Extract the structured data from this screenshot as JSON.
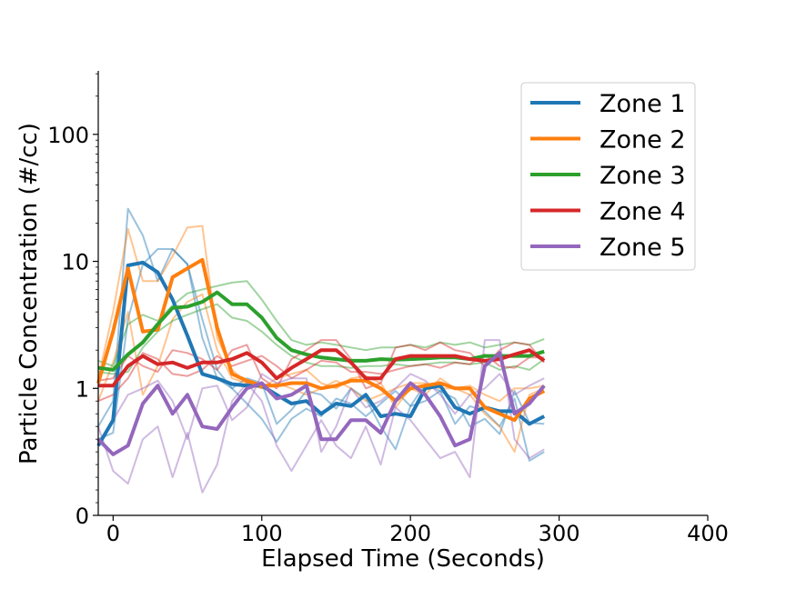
{
  "chart_data": {
    "type": "line",
    "xlabel": "Elapsed Time (Seconds)",
    "ylabel": "Particle Concentration (#/cc)",
    "y_scale": "symlog",
    "xlim": [
      -10,
      400
    ],
    "ylim": [
      0,
      316
    ],
    "x_ticks": [
      0,
      100,
      200,
      300,
      400
    ],
    "x_tick_labels": [
      "0",
      "100",
      "200",
      "300",
      "400"
    ],
    "y_ticks": [
      0,
      1,
      10,
      100
    ],
    "y_tick_labels": [
      "0",
      "1",
      "10",
      "100"
    ],
    "grid": false,
    "legend_position": "top-right",
    "x": [
      -10,
      0,
      10,
      20,
      30,
      40,
      50,
      60,
      70,
      80,
      90,
      100,
      110,
      120,
      130,
      140,
      150,
      160,
      170,
      180,
      190,
      200,
      210,
      220,
      230,
      240,
      250,
      260,
      270,
      280,
      290
    ],
    "series": [
      {
        "name": "Zone 1",
        "color": "#1f77b4",
        "values": [
          0.55,
          0.75,
          9.3,
          9.8,
          8.2,
          5.0,
          2.6,
          1.3,
          1.2,
          1.08,
          1.05,
          1.05,
          0.95,
          0.88,
          0.9,
          0.8,
          0.88,
          0.86,
          0.95,
          0.78,
          0.8,
          0.78,
          1.0,
          1.05,
          0.85,
          0.8,
          0.85,
          0.82,
          0.82,
          0.72,
          0.78
        ],
        "replicates": [
          [
            0.7,
            0.9,
            26,
            16,
            7,
            12.5,
            9.5,
            3.5,
            1.4,
            1.0,
            1.2,
            1.1,
            0.72,
            0.83,
            0.98,
            0.95,
            0.84,
            1.0,
            0.92,
            0.7,
            0.52,
            0.86,
            1.08,
            0.98,
            0.72,
            0.86,
            0.82,
            0.7,
            0.92,
            0.43,
            0.5
          ],
          [
            0.6,
            0.65,
            3.5,
            9.5,
            12.5,
            12.5,
            9.5,
            2.5,
            1.2,
            1.0,
            0.88,
            0.76,
            0.58,
            0.76,
            0.84,
            0.78,
            0.92,
            0.88,
            0.78,
            0.88,
            0.98,
            0.86,
            0.9,
            0.98,
            0.92,
            0.7,
            0.76,
            0.64,
            0.98,
            0.73,
            0.72
          ]
        ]
      },
      {
        "name": "Zone 2",
        "color": "#ff7f0e",
        "values": [
          1.1,
          2.8,
          8.8,
          2.8,
          2.9,
          7.5,
          8.8,
          10.3,
          3.0,
          1.3,
          1.15,
          1.05,
          1.05,
          1.1,
          1.1,
          1.0,
          1.05,
          1.15,
          1.15,
          1.0,
          0.9,
          1.0,
          1.05,
          1.1,
          1.0,
          1.0,
          0.85,
          0.8,
          0.75,
          0.92,
          0.98
        ],
        "replicates": [
          [
            1.2,
            4.0,
            18,
            7.0,
            7.0,
            11,
            18.5,
            19,
            2.5,
            1.4,
            1.1,
            1.0,
            1.2,
            1.3,
            1.4,
            1.1,
            1.0,
            1.2,
            1.25,
            1.1,
            0.85,
            1.0,
            0.95,
            1.2,
            1.0,
            0.95,
            0.8,
            0.7,
            0.5,
            0.95,
            1.0
          ],
          [
            0.9,
            1.6,
            4.0,
            0.95,
            1.5,
            3.5,
            4.8,
            5.5,
            2.0,
            1.2,
            1.1,
            1.0,
            1.1,
            1.0,
            0.95,
            1.0,
            1.15,
            1.0,
            0.9,
            0.95,
            1.0,
            1.1,
            1.1,
            1.0,
            1.0,
            1.05,
            0.95,
            0.9,
            1.0,
            1.0,
            1.05
          ]
        ]
      },
      {
        "name": "Zone 3",
        "color": "#2ca02c",
        "values": [
          1.45,
          1.4,
          1.85,
          2.3,
          3.2,
          4.3,
          4.4,
          4.8,
          5.7,
          4.6,
          4.6,
          3.6,
          2.5,
          2.0,
          1.85,
          1.75,
          1.7,
          1.65,
          1.65,
          1.7,
          1.68,
          1.7,
          1.72,
          1.75,
          1.75,
          1.7,
          1.8,
          1.8,
          1.8,
          1.8,
          1.95
        ],
        "replicates": [
          [
            1.65,
            1.5,
            3.2,
            3.8,
            3.4,
            4.5,
            5.6,
            6.0,
            6.4,
            6.8,
            7.0,
            5.0,
            3.4,
            2.4,
            2.2,
            2.3,
            2.2,
            2.1,
            2.0,
            2.1,
            2.1,
            2.2,
            2.1,
            2.3,
            2.2,
            2.3,
            2.1,
            2.2,
            2.3,
            2.2,
            2.45
          ],
          [
            1.35,
            1.3,
            1.35,
            2.1,
            2.8,
            3.4,
            3.8,
            4.2,
            4.6,
            3.6,
            3.4,
            2.8,
            2.2,
            1.8,
            1.6,
            1.5,
            1.5,
            1.45,
            1.5,
            1.5,
            1.55,
            1.5,
            1.55,
            1.6,
            1.6,
            1.55,
            1.6,
            1.4,
            1.5,
            1.4,
            1.7
          ]
        ]
      },
      {
        "name": "Zone 4",
        "color": "#d62728",
        "values": [
          1.05,
          1.05,
          1.5,
          1.8,
          1.55,
          1.6,
          1.45,
          1.6,
          1.6,
          1.7,
          1.9,
          1.6,
          1.2,
          1.45,
          1.7,
          2.0,
          2.0,
          1.6,
          1.2,
          1.2,
          1.7,
          1.8,
          1.8,
          1.8,
          1.8,
          1.7,
          1.65,
          1.7,
          1.85,
          2.0,
          1.65
        ],
        "replicates": [
          [
            1.15,
            1.2,
            1.8,
            1.5,
            1.35,
            2.0,
            1.9,
            1.7,
            1.4,
            2.0,
            2.2,
            1.2,
            1.0,
            1.7,
            2.0,
            2.4,
            2.4,
            1.7,
            1.0,
            1.1,
            2.1,
            2.2,
            2.0,
            2.3,
            2.0,
            1.9,
            1.5,
            2.0,
            2.3,
            2.2,
            1.6
          ],
          [
            0.9,
            0.95,
            1.2,
            1.9,
            1.7,
            1.3,
            1.25,
            1.4,
            1.8,
            1.5,
            1.65,
            1.8,
            1.5,
            1.2,
            1.4,
            1.65,
            1.6,
            1.35,
            1.35,
            1.3,
            1.4,
            1.5,
            1.55,
            1.45,
            1.6,
            1.55,
            1.85,
            1.5,
            1.45,
            1.75,
            1.75
          ]
        ]
      },
      {
        "name": "Zone 5",
        "color": "#9467bd",
        "values": [
          0.6,
          0.48,
          0.55,
          0.88,
          1.05,
          0.8,
          0.95,
          0.7,
          0.68,
          0.85,
          1.0,
          1.1,
          0.92,
          0.95,
          1.05,
          0.6,
          0.6,
          0.75,
          0.75,
          0.65,
          0.9,
          1.1,
          0.95,
          0.78,
          0.55,
          0.6,
          1.5,
          1.9,
          0.8,
          0.88,
          1.05
        ],
        "replicates": [
          [
            0.7,
            0.35,
            0.25,
            0.6,
            0.7,
            0.3,
            0.65,
            0.18,
            0.4,
            0.9,
            1.1,
            0.9,
            0.55,
            0.35,
            0.55,
            0.75,
            0.55,
            0.45,
            0.7,
            0.4,
            0.85,
            0.75,
            0.6,
            0.45,
            0.5,
            0.3,
            2.4,
            2.4,
            0.6,
            0.45,
            0.52
          ],
          [
            0.55,
            0.75,
            0.95,
            1.0,
            1.15,
            0.9,
            0.6,
            1.0,
            1.05,
            0.75,
            0.85,
            1.3,
            1.1,
            1.2,
            1.2,
            0.5,
            0.7,
            1.0,
            0.85,
            0.9,
            1.0,
            1.3,
            1.15,
            0.95,
            0.8,
            0.95,
            1.0,
            1.3,
            0.95,
            1.05,
            1.2
          ]
        ]
      }
    ]
  }
}
